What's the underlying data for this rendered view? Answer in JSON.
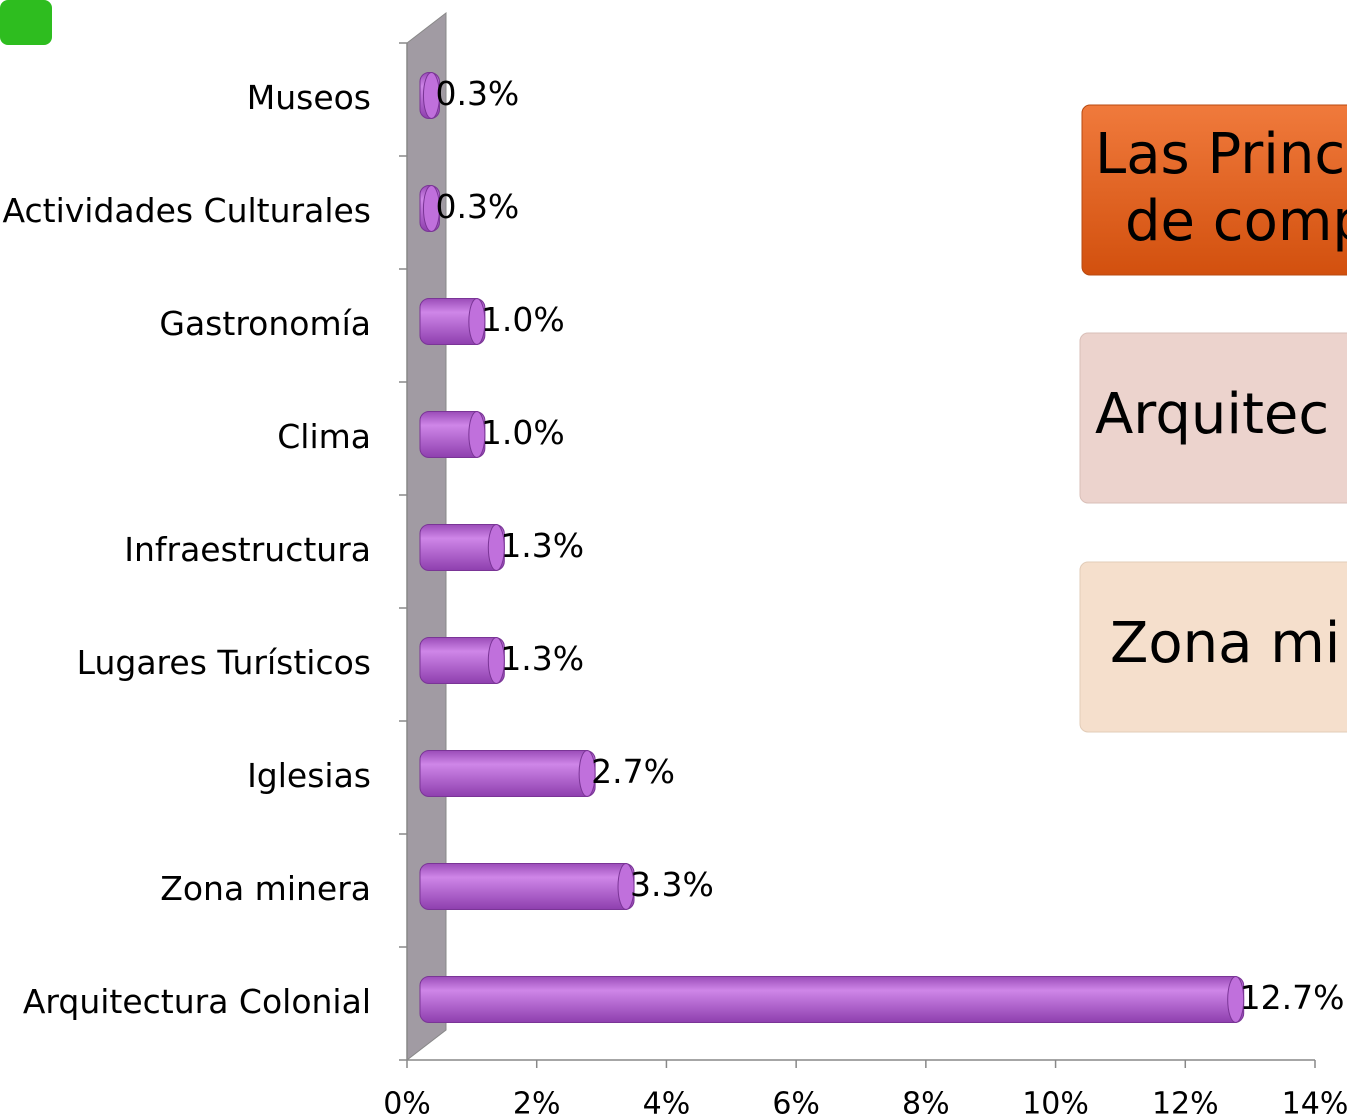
{
  "chart_data": {
    "type": "bar",
    "orientation": "horizontal",
    "categories": [
      "Museos",
      "Actividades Culturales",
      "Gastronomía",
      "Clima",
      "Infraestructura",
      "Lugares Turísticos",
      "Iglesias",
      "Zona minera",
      "Arquitectura Colonial"
    ],
    "values": [
      0.3,
      0.3,
      1.0,
      1.0,
      1.3,
      1.3,
      2.7,
      3.3,
      12.7
    ],
    "value_labels": [
      "0.3%",
      "0.3%",
      "1.0%",
      "1.0%",
      "1.3%",
      "1.3%",
      "2.7%",
      "3.3%",
      "12.7%"
    ],
    "color": "#b865d4",
    "xlim": [
      0,
      14
    ],
    "xticks": [
      {
        "value": 0,
        "label": "0%"
      },
      {
        "value": 2,
        "label": "2%"
      },
      {
        "value": 4,
        "label": "4%"
      },
      {
        "value": 6,
        "label": "6%"
      },
      {
        "value": 8,
        "label": "8%"
      },
      {
        "value": 10,
        "label": "10%"
      },
      {
        "value": 12,
        "label": "12%"
      },
      {
        "value": 14,
        "label": "14%"
      }
    ],
    "annotations": [
      "Las Princ",
      "de comp",
      "Arquitec",
      "Zona mi"
    ]
  }
}
